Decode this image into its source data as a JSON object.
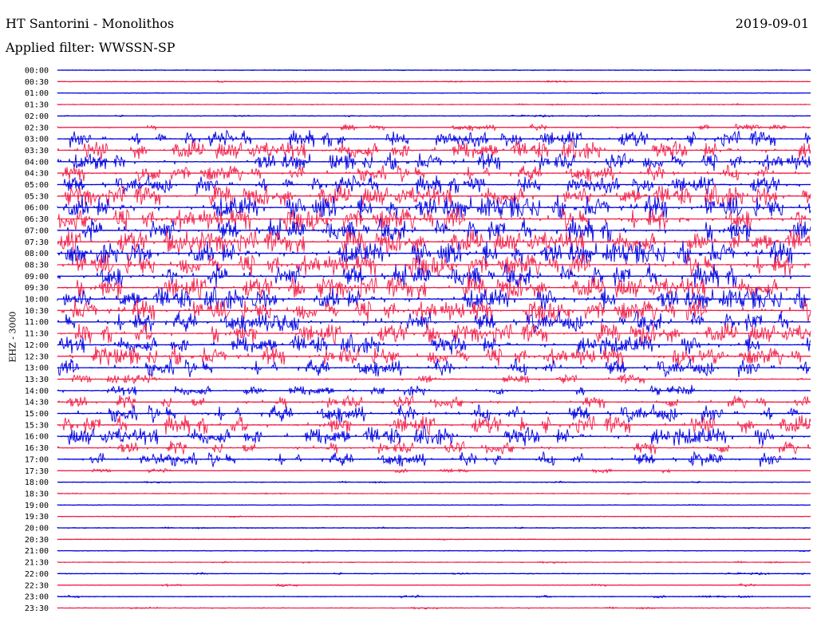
{
  "header": {
    "station": "HT Santorini - Monolithos",
    "filter": "Applied filter: WWSSN-SP",
    "date": "2019-09-01",
    "channel": "EHZ - 3000"
  },
  "colors": {
    "even_rows": "#0000e0",
    "odd_rows": "#f0204a"
  },
  "chart_data": {
    "type": "line",
    "title": "HT Santorini - Monolithos",
    "subtitle": "Applied filter: WWSSN-SP",
    "ylabel": "EHZ - 3000",
    "rows": [
      {
        "time": "00:00",
        "activity": 0.03
      },
      {
        "time": "00:30",
        "activity": 0.05
      },
      {
        "time": "01:00",
        "activity": 0.03
      },
      {
        "time": "01:30",
        "activity": 0.04
      },
      {
        "time": "02:00",
        "activity": 0.05
      },
      {
        "time": "02:30",
        "activity": 0.25
      },
      {
        "time": "03:00",
        "activity": 0.7
      },
      {
        "time": "03:30",
        "activity": 0.8
      },
      {
        "time": "04:00",
        "activity": 0.75
      },
      {
        "time": "04:30",
        "activity": 0.7
      },
      {
        "time": "05:00",
        "activity": 0.75
      },
      {
        "time": "05:30",
        "activity": 0.9
      },
      {
        "time": "06:00",
        "activity": 1.0
      },
      {
        "time": "06:30",
        "activity": 1.0
      },
      {
        "time": "07:00",
        "activity": 1.0
      },
      {
        "time": "07:30",
        "activity": 1.0
      },
      {
        "time": "08:00",
        "activity": 1.0
      },
      {
        "time": "08:30",
        "activity": 1.0
      },
      {
        "time": "09:00",
        "activity": 1.0
      },
      {
        "time": "09:30",
        "activity": 0.95
      },
      {
        "time": "10:00",
        "activity": 0.95
      },
      {
        "time": "10:30",
        "activity": 0.95
      },
      {
        "time": "11:00",
        "activity": 0.9
      },
      {
        "time": "11:30",
        "activity": 0.85
      },
      {
        "time": "12:00",
        "activity": 0.8
      },
      {
        "time": "12:30",
        "activity": 0.8
      },
      {
        "time": "13:00",
        "activity": 0.75
      },
      {
        "time": "13:30",
        "activity": 0.4
      },
      {
        "time": "14:00",
        "activity": 0.45
      },
      {
        "time": "14:30",
        "activity": 0.55
      },
      {
        "time": "15:00",
        "activity": 0.75
      },
      {
        "time": "15:30",
        "activity": 0.8
      },
      {
        "time": "16:00",
        "activity": 0.8
      },
      {
        "time": "16:30",
        "activity": 0.55
      },
      {
        "time": "17:00",
        "activity": 0.6
      },
      {
        "time": "17:30",
        "activity": 0.15
      },
      {
        "time": "18:00",
        "activity": 0.05
      },
      {
        "time": "18:30",
        "activity": 0.03
      },
      {
        "time": "19:00",
        "activity": 0.03
      },
      {
        "time": "19:30",
        "activity": 0.03
      },
      {
        "time": "20:00",
        "activity": 0.04
      },
      {
        "time": "20:30",
        "activity": 0.03
      },
      {
        "time": "21:00",
        "activity": 0.03
      },
      {
        "time": "21:30",
        "activity": 0.05
      },
      {
        "time": "22:00",
        "activity": 0.06
      },
      {
        "time": "22:30",
        "activity": 0.1
      },
      {
        "time": "23:00",
        "activity": 0.08
      },
      {
        "time": "23:30",
        "activity": 0.06
      }
    ]
  }
}
